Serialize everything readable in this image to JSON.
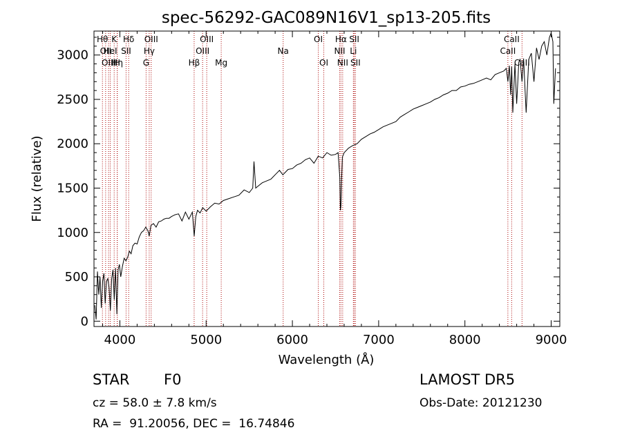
{
  "chart_data": {
    "type": "line",
    "title": "spec-56292-GAC089N16V1_sp13-205.fits",
    "xlabel": "Wavelength (Å)",
    "ylabel": "Flux (relative)",
    "xlim": [
      3700,
      9100
    ],
    "ylim": [
      -60,
      3270
    ],
    "x_ticks": [
      {
        "value": 4000,
        "label": "4000"
      },
      {
        "value": 5000,
        "label": "5000"
      },
      {
        "value": 6000,
        "label": "6000"
      },
      {
        "value": 7000,
        "label": "7000"
      },
      {
        "value": 8000,
        "label": "8000"
      },
      {
        "value": 9000,
        "label": "9000"
      }
    ],
    "y_ticks": [
      {
        "value": 0,
        "label": "0"
      },
      {
        "value": 500,
        "label": "500"
      },
      {
        "value": 1000,
        "label": "1000"
      },
      {
        "value": 1500,
        "label": "1500"
      },
      {
        "value": 2000,
        "label": "2000"
      },
      {
        "value": 2500,
        "label": "2500"
      },
      {
        "value": 3000,
        "label": "3000"
      }
    ],
    "grid": false,
    "series": [
      {
        "line_color": "#000000",
        "x": [
          3710,
          3725,
          3740,
          3755,
          3770,
          3785,
          3800,
          3815,
          3830,
          3845,
          3860,
          3875,
          3890,
          3905,
          3920,
          3935,
          3950,
          3965,
          3980,
          3995,
          4010,
          4030,
          4050,
          4070,
          4090,
          4110,
          4130,
          4150,
          4175,
          4200,
          4225,
          4250,
          4275,
          4300,
          4325,
          4340,
          4360,
          4390,
          4420,
          4450,
          4480,
          4510,
          4540,
          4570,
          4600,
          4640,
          4680,
          4720,
          4760,
          4800,
          4840,
          4862,
          4880,
          4900,
          4930,
          4960,
          5000,
          5050,
          5100,
          5150,
          5200,
          5260,
          5320,
          5380,
          5440,
          5500,
          5540,
          5555,
          5575,
          5600,
          5650,
          5700,
          5750,
          5800,
          5850,
          5890,
          5950,
          6000,
          6050,
          6100,
          6150,
          6200,
          6250,
          6300,
          6350,
          6400,
          6450,
          6500,
          6530,
          6550,
          6556,
          6563,
          6570,
          6580,
          6600,
          6650,
          6700,
          6750,
          6800,
          6850,
          6900,
          6950,
          7000,
          7050,
          7100,
          7150,
          7200,
          7250,
          7300,
          7350,
          7400,
          7450,
          7500,
          7550,
          7600,
          7650,
          7700,
          7750,
          7800,
          7850,
          7900,
          7950,
          8000,
          8050,
          8100,
          8150,
          8200,
          8250,
          8300,
          8350,
          8400,
          8450,
          8480,
          8498,
          8515,
          8530,
          8542,
          8555,
          8580,
          8600,
          8625,
          8640,
          8662,
          8680,
          8710,
          8740,
          8770,
          8800,
          8830,
          8860,
          8890,
          8920,
          8950,
          8980,
          9000,
          9020,
          9030,
          9050
        ],
        "y": [
          180,
          20,
          560,
          300,
          500,
          150,
          450,
          540,
          200,
          450,
          480,
          380,
          120,
          480,
          580,
          240,
          600,
          80,
          580,
          640,
          500,
          620,
          710,
          680,
          720,
          790,
          760,
          850,
          880,
          870,
          950,
          1000,
          1020,
          1060,
          1020,
          960,
          1080,
          1100,
          1060,
          1120,
          1130,
          1150,
          1160,
          1160,
          1180,
          1200,
          1210,
          1130,
          1230,
          1150,
          1230,
          960,
          1180,
          1250,
          1220,
          1280,
          1240,
          1290,
          1330,
          1320,
          1360,
          1380,
          1400,
          1420,
          1480,
          1450,
          1500,
          1800,
          1500,
          1520,
          1560,
          1580,
          1600,
          1650,
          1700,
          1650,
          1710,
          1720,
          1760,
          1780,
          1820,
          1840,
          1780,
          1860,
          1840,
          1900,
          1870,
          1880,
          1900,
          1620,
          1250,
          1300,
          1580,
          1850,
          1900,
          1950,
          1980,
          2000,
          2050,
          2080,
          2110,
          2130,
          2160,
          2190,
          2210,
          2230,
          2250,
          2300,
          2330,
          2360,
          2390,
          2410,
          2430,
          2450,
          2470,
          2500,
          2520,
          2550,
          2570,
          2600,
          2600,
          2640,
          2650,
          2670,
          2680,
          2700,
          2720,
          2740,
          2720,
          2780,
          2800,
          2820,
          2850,
          2700,
          2880,
          2550,
          2870,
          2350,
          2900,
          2450,
          2920,
          2950,
          2700,
          2960,
          2350,
          2950,
          3020,
          2700,
          3080,
          2950,
          3100,
          3150,
          3000,
          3200,
          3250,
          3150,
          2450,
          2850
        ]
      }
    ],
    "line_markers": [
      {
        "wavelength": 3798,
        "label": "Hθ",
        "row": 1
      },
      {
        "wavelength": 3835,
        "label": "OII",
        "row": 2
      },
      {
        "wavelength": 3869,
        "label": "OIII",
        "row": 3
      },
      {
        "wavelength": 3889,
        "label": "HeI",
        "row": 2
      },
      {
        "wavelength": 3934,
        "label": "K",
        "row": 1
      },
      {
        "wavelength": 3970,
        "label": "Hη",
        "row": 3
      },
      {
        "wavelength": 3969,
        "label": "H",
        "row": 3
      },
      {
        "wavelength": 4072,
        "label": "SII",
        "row": 2
      },
      {
        "wavelength": 4102,
        "label": "Hδ",
        "row": 1
      },
      {
        "wavelength": 4304,
        "label": "G",
        "row": 3
      },
      {
        "wavelength": 4340,
        "label": "Hγ",
        "row": 2
      },
      {
        "wavelength": 4363,
        "label": "OIII",
        "row": 1
      },
      {
        "wavelength": 4861,
        "label": "Hβ",
        "row": 3
      },
      {
        "wavelength": 4959,
        "label": "OIII",
        "row": 2
      },
      {
        "wavelength": 5007,
        "label": "OIII",
        "row": 1
      },
      {
        "wavelength": 5175,
        "label": "Mg",
        "row": 3
      },
      {
        "wavelength": 5893,
        "label": "Na",
        "row": 2
      },
      {
        "wavelength": 6300,
        "label": "OI",
        "row": 1
      },
      {
        "wavelength": 6364,
        "label": "OI",
        "row": 3
      },
      {
        "wavelength": 6548,
        "label": "NII",
        "row": 2
      },
      {
        "wavelength": 6563,
        "label": "Hα",
        "row": 1
      },
      {
        "wavelength": 6583,
        "label": "NII",
        "row": 3
      },
      {
        "wavelength": 6707,
        "label": "Li",
        "row": 2
      },
      {
        "wavelength": 6717,
        "label": "SII",
        "row": 1
      },
      {
        "wavelength": 6731,
        "label": "SII",
        "row": 3
      },
      {
        "wavelength": 8498,
        "label": "CaII",
        "row": 2
      },
      {
        "wavelength": 8542,
        "label": "CaII",
        "row": 1
      },
      {
        "wavelength": 8662,
        "label": "CaII",
        "row": 3
      }
    ],
    "marker_color": "#aa0000"
  },
  "info": {
    "object_class": "STAR",
    "subclass": "F0",
    "survey": "LAMOST DR5",
    "redshift": "cz = 58.0 ± 7.8 km/s",
    "obs_date": "Obs-Date: 20121230",
    "coords": "RA =  91.20056, DEC =  16.74846"
  }
}
